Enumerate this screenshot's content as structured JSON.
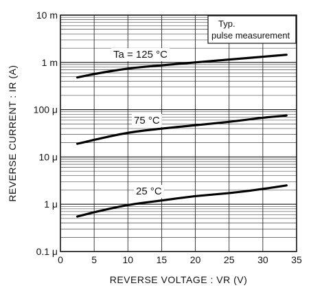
{
  "chart_data": {
    "type": "line",
    "xlabel": "REVERSE VOLTAGE : VR (V)",
    "ylabel": "REVERSE CURRENT : IR (A)",
    "xlim": [
      0,
      35
    ],
    "ylim": [
      1e-07,
      0.01
    ],
    "yscale": "log",
    "grid": true,
    "x_ticks": [
      0,
      5,
      10,
      15,
      20,
      25,
      30,
      35
    ],
    "x_tick_labels": [
      "0",
      "5",
      "10",
      "15",
      "20",
      "25",
      "30",
      "35"
    ],
    "y_ticks": [
      1e-07,
      1e-06,
      1e-05,
      0.0001,
      0.001,
      0.01
    ],
    "y_tick_labels": [
      "0.1 μ",
      "1 μ",
      "10 μ",
      "100 μ",
      "1 m",
      "10 m"
    ],
    "legend_box": {
      "line1": "Typ.",
      "line2": "pulse measurement",
      "placement": "top-right"
    },
    "series": [
      {
        "name": "Ta = 125 °C",
        "x": [
          2.5,
          5,
          10,
          15,
          20,
          25,
          30,
          33.5
        ],
        "y": [
          0.00048,
          0.00057,
          0.00075,
          0.00087,
          0.001,
          0.00115,
          0.00132,
          0.00145
        ]
      },
      {
        "name": "75 °C",
        "x": [
          2.5,
          5,
          10,
          15,
          20,
          25,
          30,
          33.5
        ],
        "y": [
          1.9e-05,
          2.3e-05,
          3.3e-05,
          4e-05,
          4.7e-05,
          5.5e-05,
          6.8e-05,
          7.5e-05
        ]
      },
      {
        "name": "25 °C",
        "x": [
          2.5,
          5,
          10,
          15,
          20,
          25,
          30,
          33.5
        ],
        "y": [
          5.5e-07,
          6.8e-07,
          9.8e-07,
          1.2e-06,
          1.5e-06,
          1.7e-06,
          2.1e-06,
          2.5e-06
        ]
      }
    ]
  }
}
